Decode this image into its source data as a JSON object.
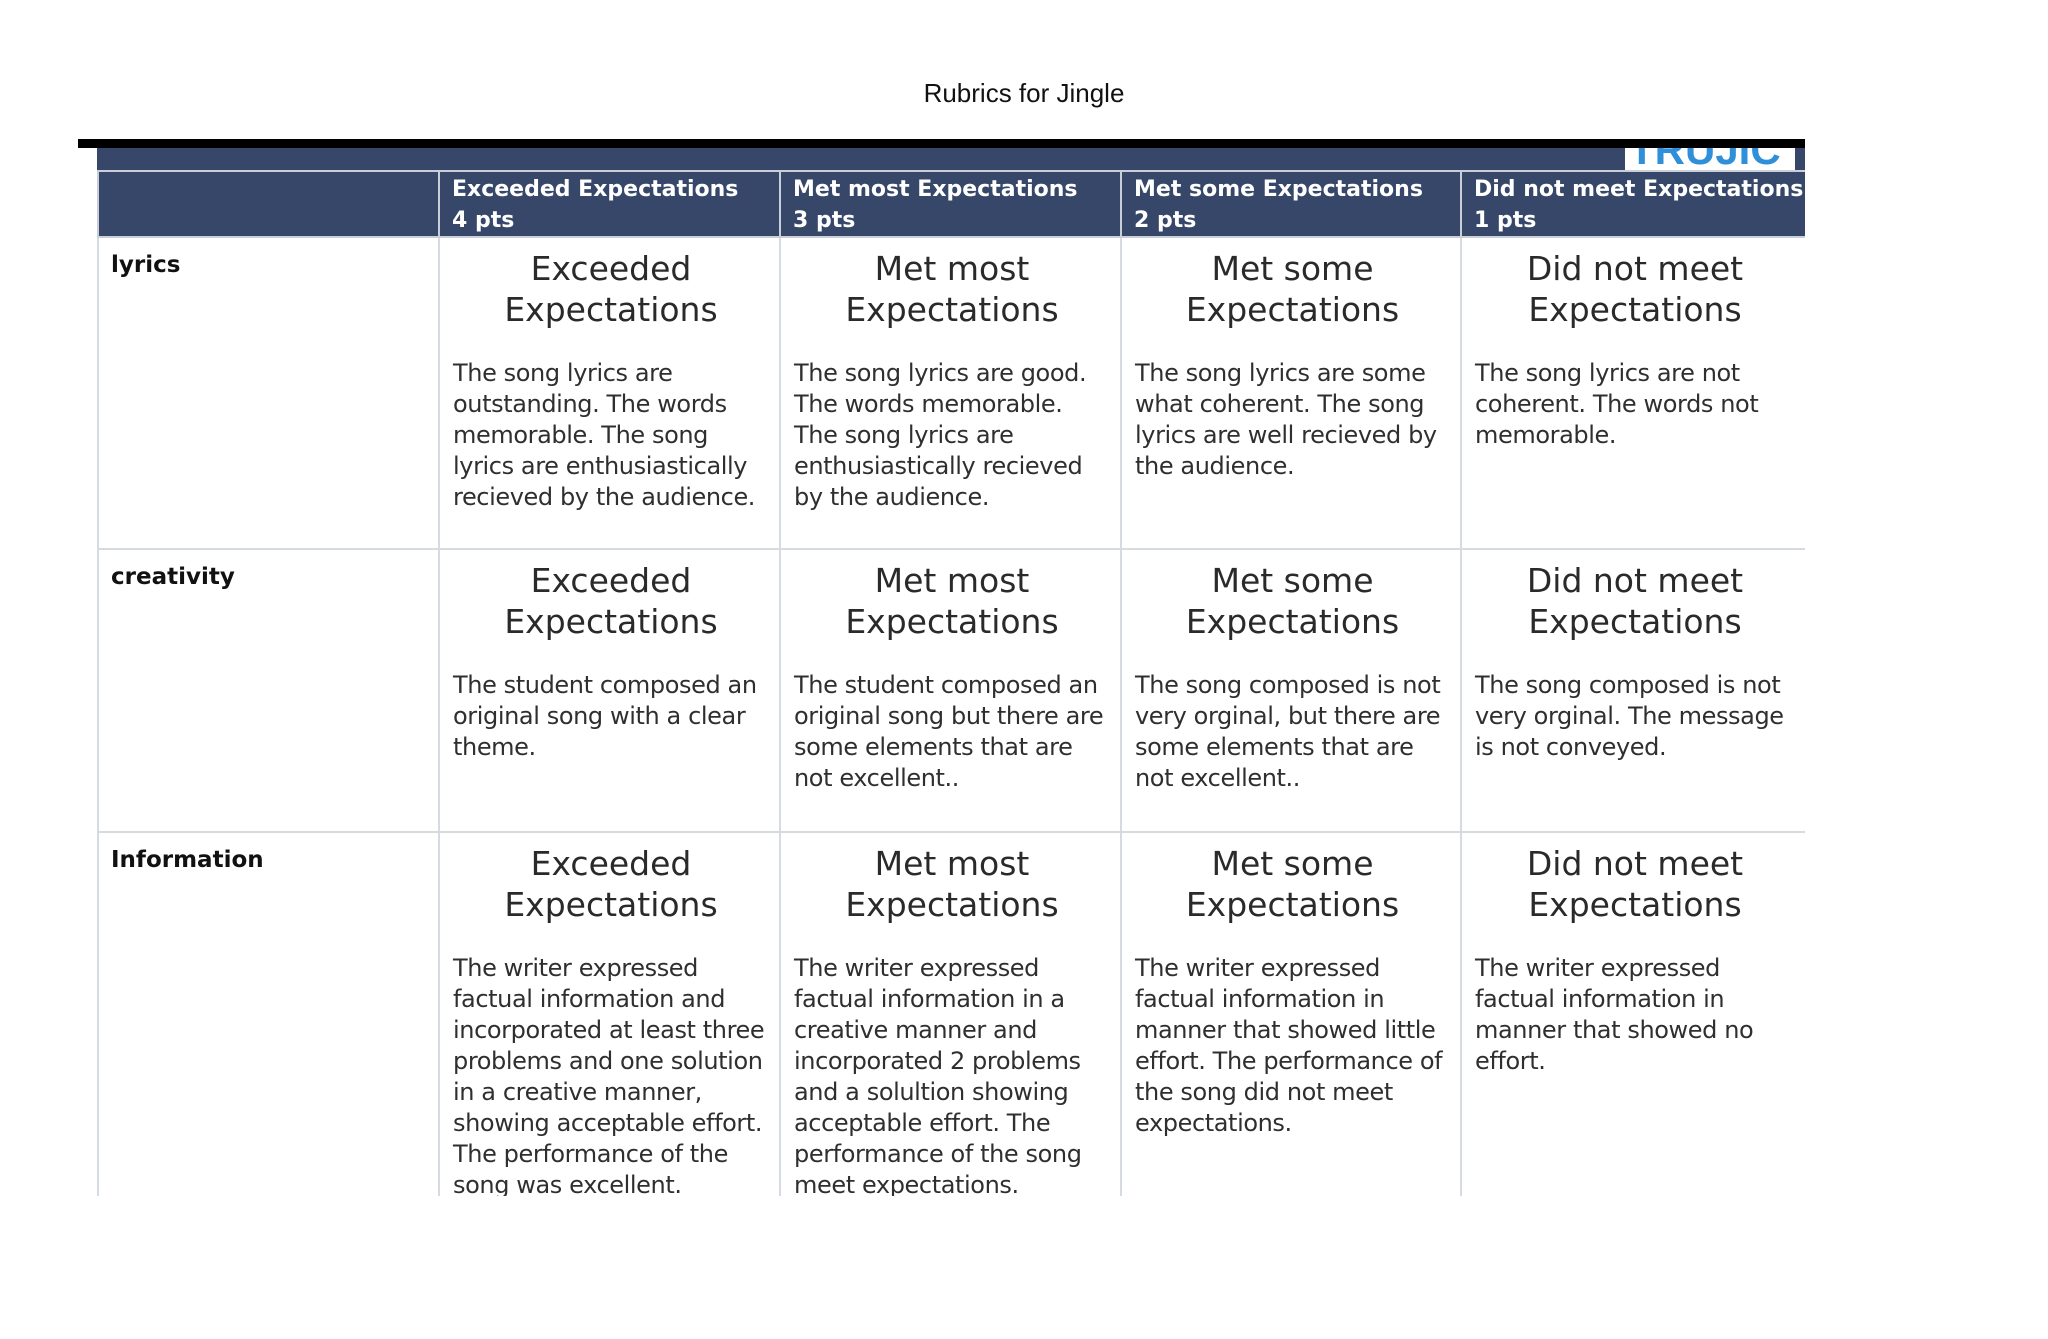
{
  "title": "Rubrics for Jingle",
  "logo_text": "TRUJIC",
  "colors": {
    "header_bg": "#36476a",
    "header_text": "#ffffff",
    "border": "#d6dae1",
    "rule": "#000000",
    "logo_blue": "#2f8fd8"
  },
  "columns": [
    {
      "label": "Exceeded Expectations",
      "points": "4 pts"
    },
    {
      "label": "Met most Expectations",
      "points": "3 pts"
    },
    {
      "label": "Met some Expectations",
      "points": "2 pts"
    },
    {
      "label": "Did not meet Expectations",
      "points": "1 pts"
    }
  ],
  "level_titles": [
    {
      "line1": "Exceeded",
      "line2": "Expectations"
    },
    {
      "line1": "Met most",
      "line2": "Expectations"
    },
    {
      "line1": "Met some",
      "line2": "Expectations"
    },
    {
      "line1": "Did not meet",
      "line2": "Expectations"
    }
  ],
  "rows": [
    {
      "label": "lyrics",
      "cells": [
        "The song lyrics are outstanding. The words memorable. The song lyrics are enthusiastically recieved by the audience.",
        "The song lyrics are good. The words memorable. The song lyrics are enthusiastically recieved by the audience.",
        "The song lyrics are some what coherent. The song lyrics are well recieved by the audience.",
        "The song lyrics are not coherent. The words not memorable."
      ]
    },
    {
      "label": "creativity",
      "cells": [
        "The student composed an original song with a clear theme.",
        "The student composed an original song but there are some elements that are not excellent..",
        "The song composed is not very orginal, but there are some elements that are not excellent..",
        "The song composed is not very orginal. The message is not conveyed."
      ]
    },
    {
      "label": "Information",
      "cells": [
        "The writer expressed factual information and incorporated at least three problems and one solution in a creative manner, showing acceptable effort. The performance of the song was excellent.",
        "The writer expressed factual information in a creative manner and incorporated 2 problems and a solultion showing acceptable effort. The performance of the song meet expectations.",
        "The writer expressed factual information in manner that showed little effort. The performance of the song did not meet expectations.",
        "The writer expressed factual information in manner that showed no effort."
      ]
    }
  ]
}
